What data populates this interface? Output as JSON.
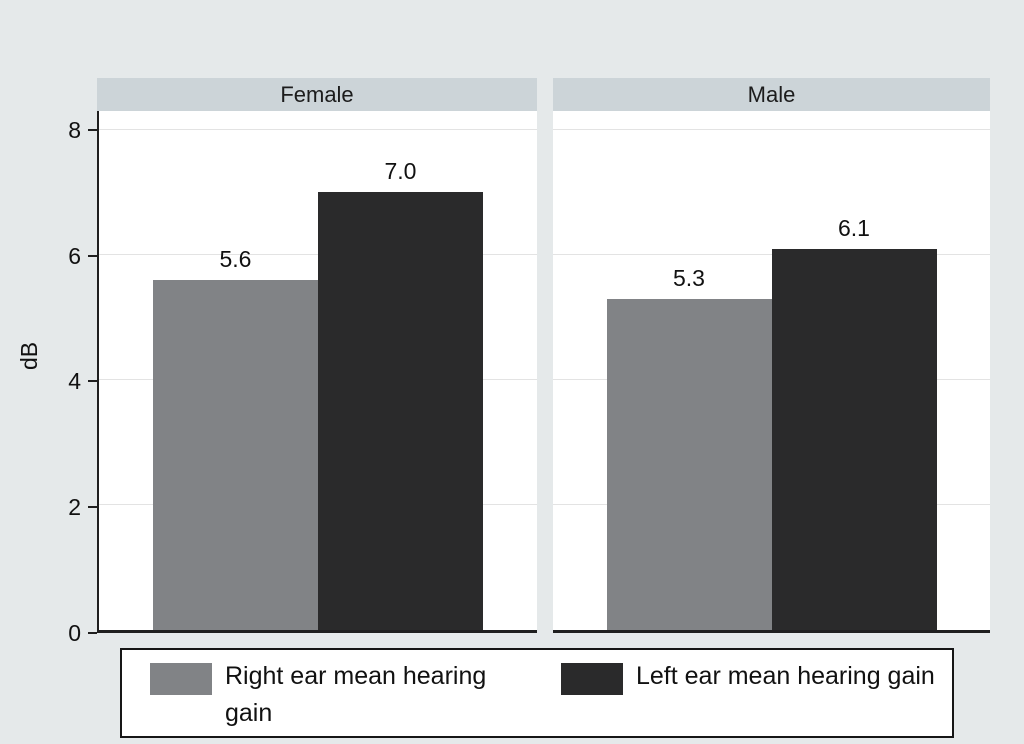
{
  "figure": {
    "background": "#e5e9ea",
    "header_band": "#ccd4d8"
  },
  "chart_data": {
    "type": "bar",
    "title": "",
    "ylabel": "dB",
    "ymax": 8.3,
    "yticks": [
      0,
      2,
      4,
      6,
      8
    ],
    "grid": true,
    "legend_position": "bottom",
    "panels": [
      {
        "label": "Female",
        "values": [
          5.6,
          7.0
        ],
        "value_labels": [
          "5.6",
          "7.0"
        ]
      },
      {
        "label": "Male",
        "values": [
          5.3,
          6.1
        ],
        "value_labels": [
          "5.3",
          "6.1"
        ]
      }
    ],
    "series": [
      {
        "name": "Right ear mean hearing gain",
        "key": "right-ear",
        "color": "#818386"
      },
      {
        "name": "Left ear mean hearing gain",
        "key": "left-ear",
        "color": "#2a2a2b"
      }
    ]
  },
  "legend": {
    "items": [
      {
        "label": "Right ear mean hearing gain"
      },
      {
        "label": "Left ear mean hearing gain"
      }
    ]
  }
}
